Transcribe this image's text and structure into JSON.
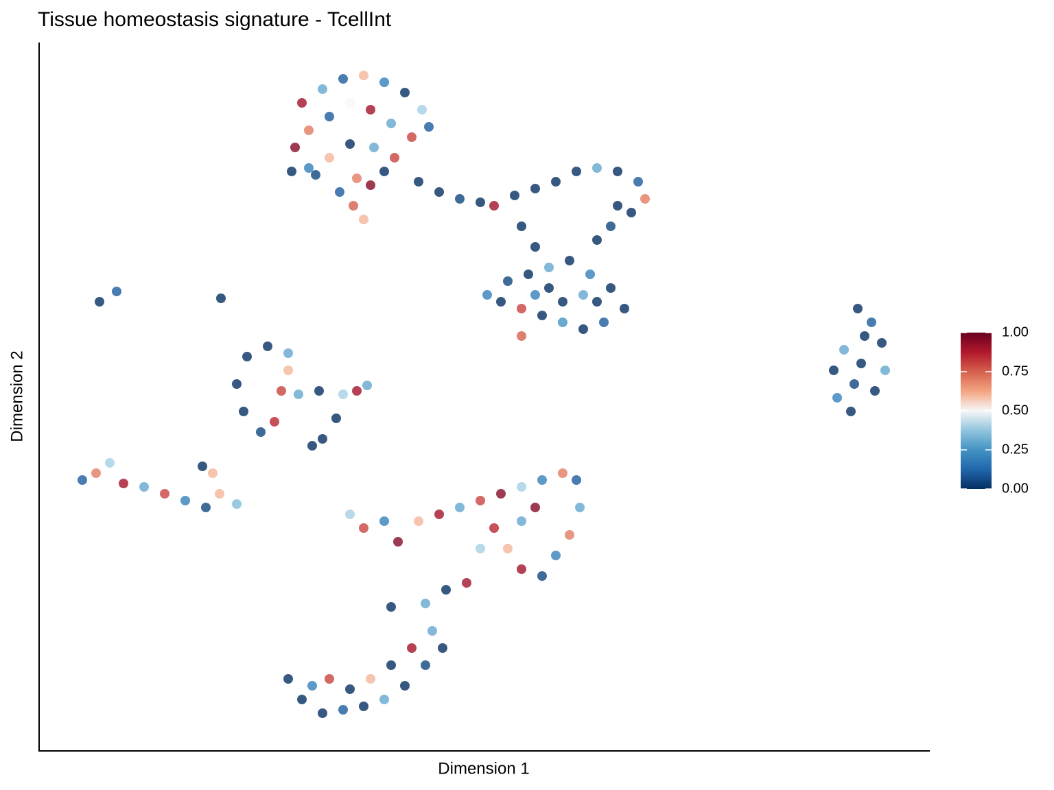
{
  "chart_data": {
    "type": "scatter",
    "title": "Tissue homeostasis signature - TcellInt",
    "x_label": "Dimension 1",
    "y_label": "Dimension 2",
    "xlim": [
      0,
      1298
    ],
    "ylim": [
      0,
      1033
    ],
    "x": [
      383,
      413,
      443,
      473,
      503,
      533,
      558,
      568,
      543,
      513,
      483,
      453,
      423,
      393,
      373,
      368,
      393,
      423,
      453,
      488,
      518,
      503,
      463,
      438,
      458,
      473,
      483,
      403,
      553,
      583,
      613,
      643,
      663,
      693,
      723,
      753,
      783,
      813,
      843,
      873,
      883,
      863,
      843,
      833,
      813,
      703,
      723,
      653,
      683,
      713,
      743,
      773,
      803,
      833,
      853,
      823,
      793,
      763,
      733,
      703,
      673,
      703,
      763,
      793,
      743,
      813,
      723,
      88,
      113,
      265,
      303,
      333,
      363,
      288,
      298,
      323,
      343,
      353,
      363,
      378,
      408,
      443,
      463,
      478,
      433,
      413,
      398,
      63,
      83,
      103,
      123,
      153,
      183,
      213,
      243,
      263,
      288,
      238,
      253,
      453,
      473,
      503,
      523,
      553,
      583,
      613,
      643,
      673,
      703,
      733,
      763,
      783,
      788,
      773,
      753,
      733,
      703,
      683,
      663,
      703,
      723,
      643,
      623,
      593,
      563,
      363,
      383,
      413,
      443,
      473,
      503,
      533,
      563,
      588,
      573,
      543,
      513,
      483,
      453,
      423,
      398,
      513,
      1193,
      1213,
      1228,
      1233,
      1218,
      1183,
      1163,
      1158,
      1173,
      1198,
      1188,
      1203
    ],
    "y": [
      945,
      965,
      980,
      985,
      975,
      960,
      935,
      910,
      895,
      915,
      935,
      945,
      925,
      905,
      880,
      845,
      850,
      865,
      885,
      880,
      865,
      845,
      835,
      815,
      795,
      775,
      825,
      840,
      830,
      815,
      805,
      800,
      795,
      810,
      820,
      830,
      845,
      850,
      845,
      830,
      805,
      785,
      795,
      765,
      745,
      765,
      735,
      665,
      685,
      695,
      705,
      715,
      695,
      675,
      645,
      625,
      615,
      625,
      635,
      645,
      655,
      605,
      655,
      665,
      675,
      655,
      665,
      655,
      670,
      660,
      575,
      590,
      580,
      535,
      495,
      465,
      480,
      525,
      555,
      520,
      525,
      520,
      525,
      533,
      485,
      455,
      445,
      395,
      405,
      420,
      390,
      385,
      375,
      365,
      355,
      375,
      360,
      415,
      405,
      345,
      325,
      335,
      305,
      335,
      345,
      355,
      365,
      375,
      385,
      395,
      405,
      395,
      355,
      315,
      285,
      255,
      265,
      295,
      325,
      335,
      355,
      295,
      245,
      235,
      215,
      105,
      75,
      55,
      60,
      65,
      75,
      95,
      125,
      150,
      175,
      150,
      125,
      105,
      90,
      105,
      95,
      210,
      645,
      625,
      595,
      555,
      525,
      495,
      515,
      555,
      585,
      565,
      535,
      605
    ],
    "values": [
      0.9,
      0.3,
      0.1,
      0.6,
      0.2,
      0,
      0.4,
      0.1,
      0.8,
      0.3,
      0.9,
      0.5,
      0.1,
      0.7,
      0.95,
      0,
      0.2,
      0.6,
      0,
      0.3,
      0.8,
      0,
      0.7,
      0.1,
      0.75,
      0.6,
      0.95,
      0.05,
      0,
      0,
      0.05,
      0,
      0.9,
      0,
      0,
      0,
      0,
      0.3,
      0,
      0.1,
      0.7,
      0,
      0,
      0.05,
      0,
      0,
      0,
      0.2,
      0.05,
      0,
      0.3,
      0,
      0.2,
      0,
      0,
      0.1,
      0,
      0.25,
      0,
      0.8,
      0,
      0.75,
      0,
      0.3,
      0,
      0,
      0.2,
      0,
      0.1,
      0,
      0,
      0,
      0.3,
      0,
      0,
      0.05,
      0.85,
      0.8,
      0.6,
      0.3,
      0,
      0.4,
      0.9,
      0.3,
      0,
      0,
      0,
      0.1,
      0.7,
      0.4,
      0.9,
      0.3,
      0.8,
      0.2,
      0.05,
      0.6,
      0.35,
      0,
      0.6,
      0.4,
      0.8,
      0.2,
      0.95,
      0.6,
      0.9,
      0.3,
      0.8,
      0.95,
      0.4,
      0.2,
      0.7,
      0.1,
      0.3,
      0.7,
      0.2,
      0.05,
      0.9,
      0.6,
      0.85,
      0.3,
      0.95,
      0.4,
      0.9,
      0,
      0.3,
      0,
      0,
      0,
      0.1,
      0,
      0.3,
      0,
      0.05,
      0,
      0.3,
      0.9,
      0,
      0.6,
      0,
      0.8,
      0.2,
      0,
      0,
      0.1,
      0,
      0.3,
      0,
      0,
      0.2,
      0,
      0.3,
      0,
      0.05,
      0
    ],
    "colormap": [
      "#053061",
      "#2166ac",
      "#4393c3",
      "#92c5de",
      "#f7f7f7",
      "#f4a582",
      "#d6604d",
      "#b2182b",
      "#67001f"
    ],
    "colorbar": {
      "lim": [
        0,
        1
      ],
      "ticks": [
        {
          "value": 0,
          "label": "0.00"
        },
        {
          "value": 0.25,
          "label": "0.25"
        },
        {
          "value": 0.5,
          "label": "0.50"
        },
        {
          "value": 0.75,
          "label": "0.75"
        },
        {
          "value": 1,
          "label": "1.00"
        }
      ]
    }
  }
}
